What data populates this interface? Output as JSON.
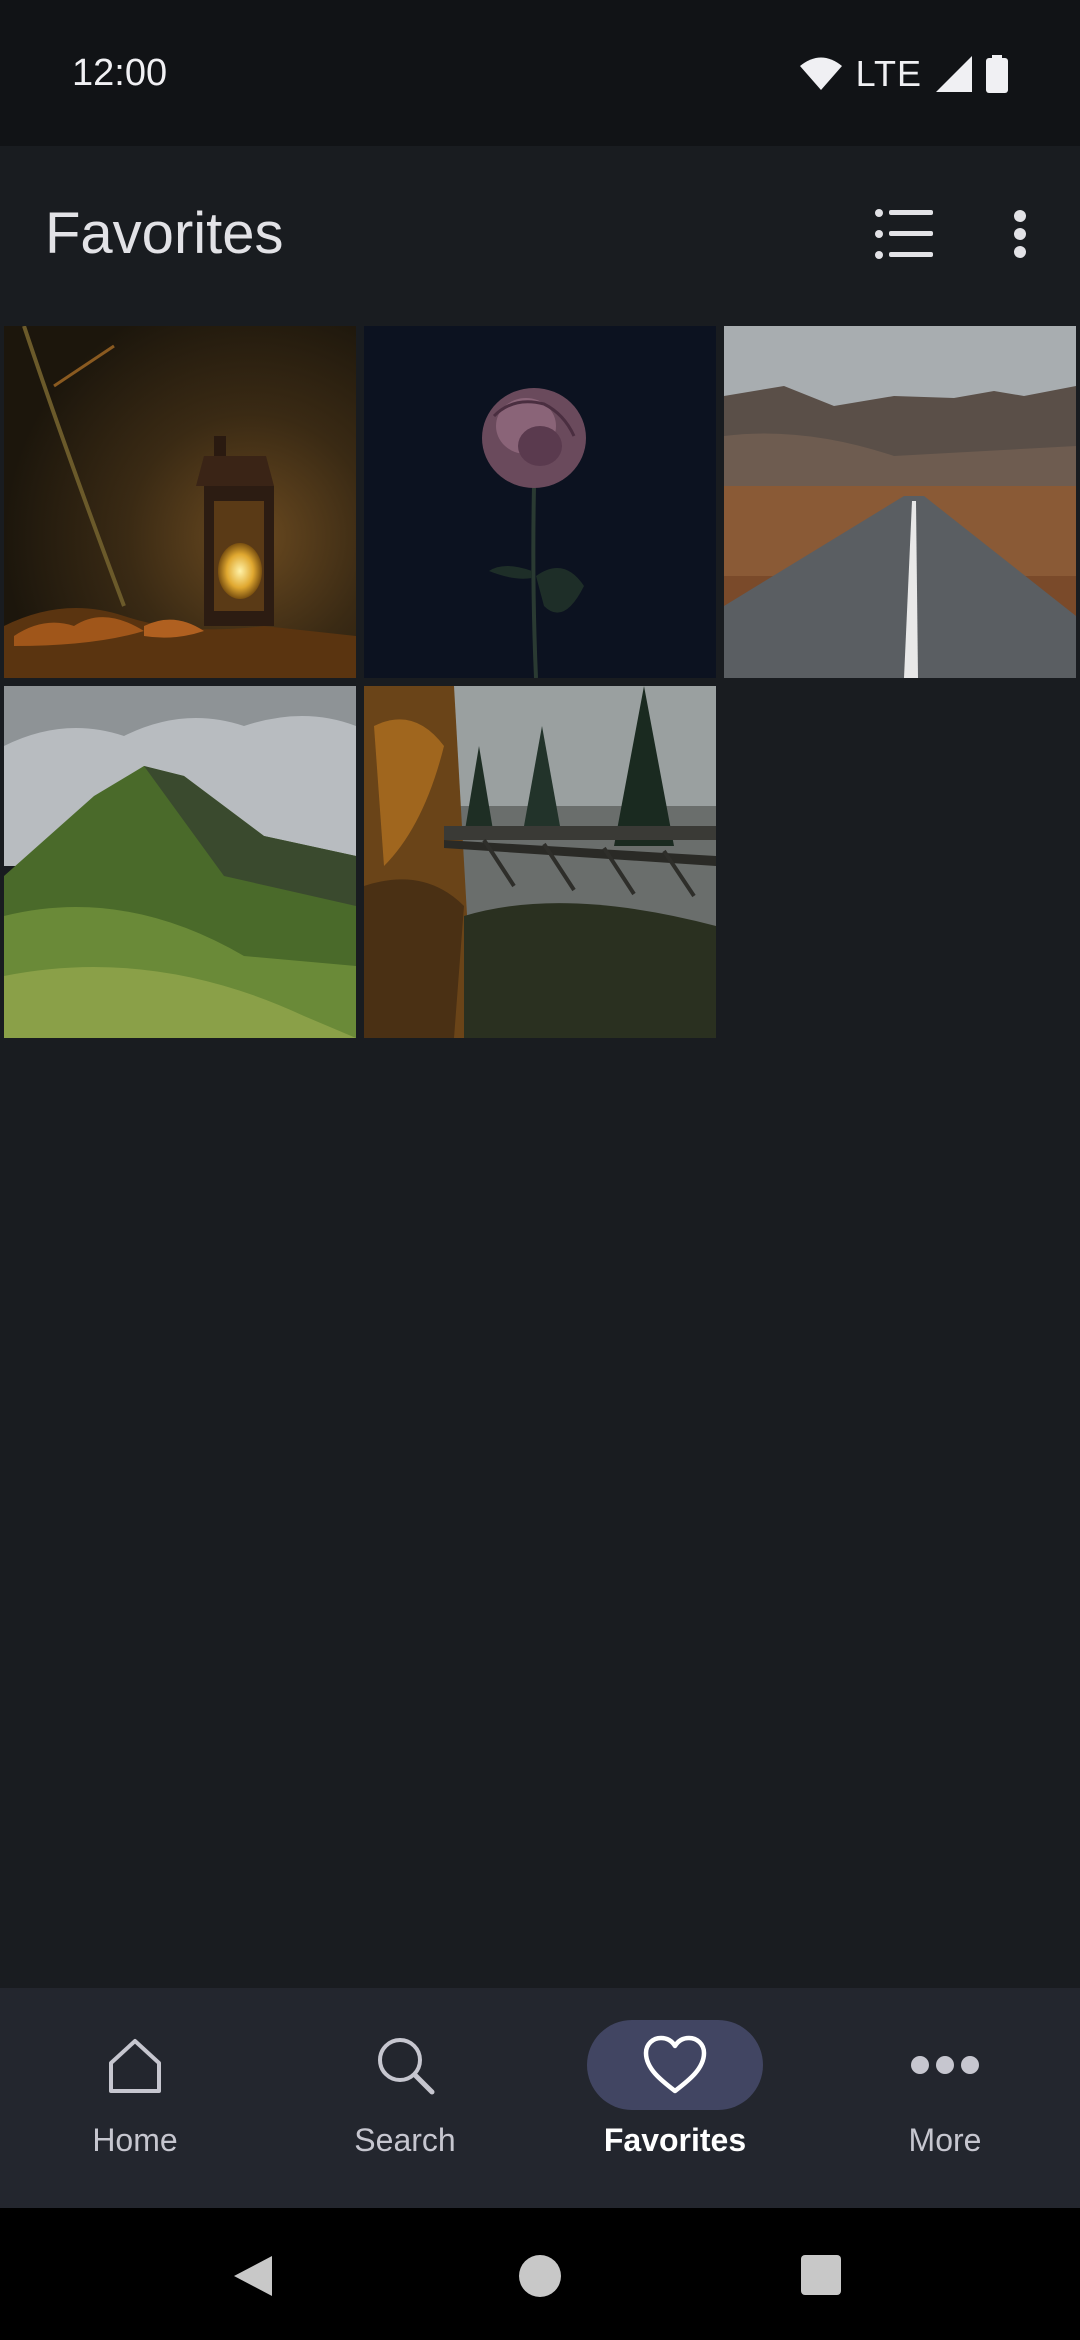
{
  "status_bar": {
    "time": "12:00",
    "network": "LTE"
  },
  "app_bar": {
    "title": "Favorites"
  },
  "photos": [
    {
      "subject": "lantern with candle and autumn leaves"
    },
    {
      "subject": "dark rose on black background"
    },
    {
      "subject": "road leading to mountains"
    },
    {
      "subject": "green hill under cloudy sky"
    },
    {
      "subject": "bridge in misty autumn forest"
    }
  ],
  "bottom_nav": {
    "items": [
      {
        "label": "Home",
        "icon": "home-icon"
      },
      {
        "label": "Search",
        "icon": "search-icon"
      },
      {
        "label": "Favorites",
        "icon": "heart-icon",
        "active": true
      },
      {
        "label": "More",
        "icon": "more-horizontal-icon"
      }
    ]
  },
  "colors": {
    "background": "#191c20",
    "nav_background": "#23262e",
    "active_pill": "#414562"
  }
}
